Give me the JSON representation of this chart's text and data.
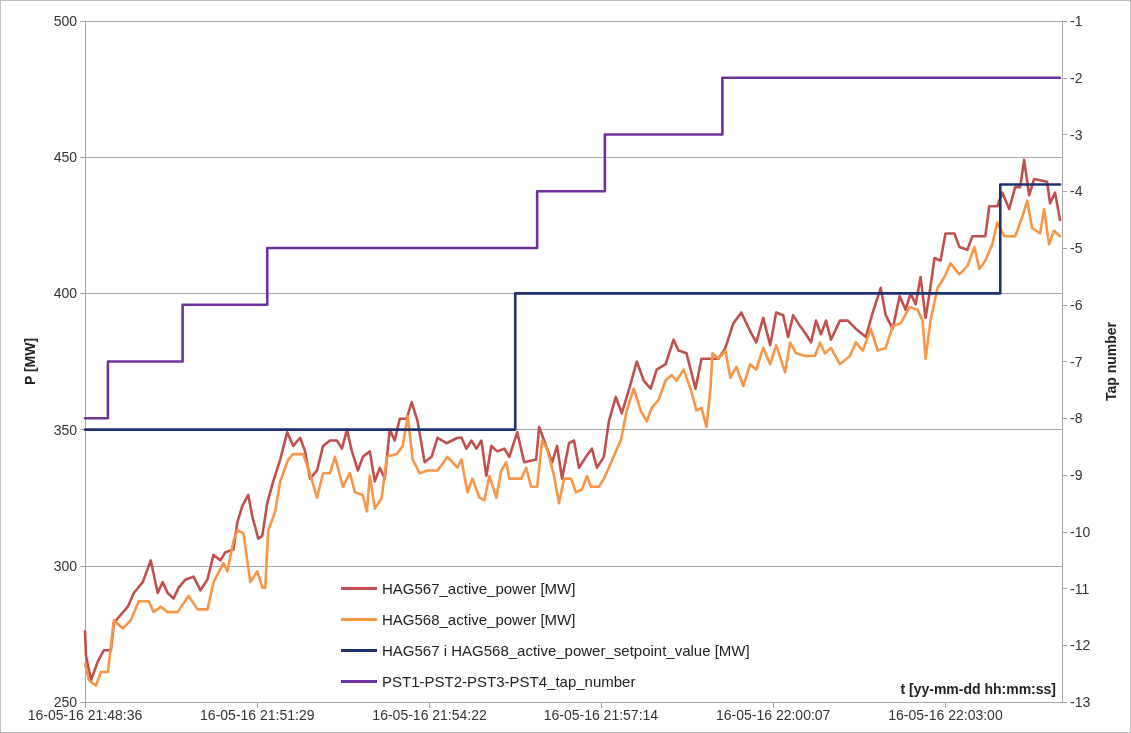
{
  "chart_data": {
    "type": "line",
    "xlabel": "t [yy-mm-dd hh:mm:ss]",
    "ylabel": "P [MW]",
    "y2label": "Tap number",
    "xlim": [
      "--05-16T21:48:36",
      "--05-16T22:04:57"
    ],
    "xticks": [
      {
        "value": "--05-16T21:48:36",
        "label": "16-05-16 21:48:36"
      },
      {
        "value": "--05-16T21:51:29",
        "label": "16-05-16 21:51:29"
      },
      {
        "value": "--05-16T21:54:22",
        "label": "16-05-16 21:54:22"
      },
      {
        "value": "--05-16T21:57:14",
        "label": "16-05-16 21:57:14"
      },
      {
        "value": "--05-16T22:00:07",
        "label": "16-05-16 22:00:07"
      },
      {
        "value": "--05-16T22:03:00",
        "label": "16-05-16 22:03:00"
      }
    ],
    "ylim": [
      250,
      500
    ],
    "yticks": [
      250,
      300,
      350,
      400,
      450,
      500
    ],
    "y2lim": [
      -13,
      -1
    ],
    "y2ticks": [
      -13,
      -12,
      -11,
      -10,
      -9,
      -8,
      -7,
      -6,
      -5,
      -4,
      -3,
      -2,
      -1
    ],
    "grid": "y",
    "legend": "bottom",
    "marker": "none",
    "series": [
      {
        "name": "HAG567_active_power [MW]",
        "color": "#c0504d",
        "x": [
          "--05-16T21:48:36",
          "--05-16T21:48:37",
          "--05-16T21:48:42",
          "--05-16T21:48:49",
          "--05-16T21:48:55",
          "--05-16T21:49:02",
          "--05-16T21:49:05",
          "--05-16T21:49:19",
          "--05-16T21:49:25",
          "--05-16T21:49:34",
          "--05-16T21:49:42",
          "--05-16T21:49:49",
          "--05-16T21:49:54",
          "--05-16T21:49:59",
          "--05-16T21:50:05",
          "--05-16T21:50:10",
          "--05-16T21:50:17",
          "--05-16T21:50:25",
          "--05-16T21:50:32",
          "--05-16T21:50:39",
          "--05-16T21:50:45",
          "--05-16T21:50:52",
          "--05-16T21:50:57",
          "--05-16T21:51:05",
          "--05-16T21:51:09",
          "--05-16T21:51:14",
          "--05-16T21:51:20",
          "--05-16T21:51:24",
          "--05-16T21:51:30",
          "--05-16T21:51:34",
          "--05-16T21:51:39",
          "--05-16T21:51:45",
          "--05-16T21:51:52",
          "--05-16T21:51:59",
          "--05-16T21:52:05",
          "--05-16T21:52:12",
          "--05-16T21:52:17",
          "--05-16T21:52:22",
          "--05-16T21:52:29",
          "--05-16T21:52:35",
          "--05-16T21:52:42",
          "--05-16T21:52:49",
          "--05-16T21:52:54",
          "--05-16T21:52:59",
          "--05-16T21:53:04",
          "--05-16T21:53:10",
          "--05-16T21:53:15",
          "--05-16T21:53:22",
          "--05-16T21:53:27",
          "--05-16T21:53:32",
          "--05-16T21:53:37",
          "--05-16T21:53:42",
          "--05-16T21:53:47",
          "--05-16T21:53:52",
          "--05-16T21:53:59",
          "--05-16T21:54:04",
          "--05-16T21:54:10",
          "--05-16T21:54:17",
          "--05-16T21:54:24",
          "--05-16T21:54:30",
          "--05-16T21:54:39",
          "--05-16T21:54:50",
          "--05-16T21:54:54",
          "--05-16T21:54:59",
          "--05-16T21:55:04",
          "--05-16T21:55:09",
          "--05-16T21:55:14",
          "--05-16T21:55:19",
          "--05-16T21:55:24",
          "--05-16T21:55:30",
          "--05-16T21:55:37",
          "--05-16T21:55:42",
          "--05-16T21:55:50",
          "--05-16T21:55:57",
          "--05-16T21:56:09",
          "--05-16T21:56:12",
          "--05-16T21:56:19",
          "--05-16T21:56:25",
          "--05-16T21:56:30",
          "--05-16T21:56:35",
          "--05-16T21:56:42",
          "--05-16T21:56:47",
          "--05-16T21:56:52",
          "--05-16T21:56:59",
          "--05-16T21:57:05",
          "--05-16T21:57:10",
          "--05-16T21:57:17",
          "--05-16T21:57:22",
          "--05-16T21:57:29",
          "--05-16T21:57:35",
          "--05-16T21:57:44",
          "--05-16T21:57:50",
          "--05-16T21:57:57",
          "--05-16T21:58:04",
          "--05-16T21:58:10",
          "--05-16T21:58:19",
          "--05-16T21:58:27",
          "--05-16T21:58:32",
          "--05-16T21:58:40",
          "--05-16T21:58:49",
          "--05-16T21:58:55",
          "--05-16T21:59:02",
          "--05-16T21:59:12",
          "--05-16T21:59:19",
          "--05-16T21:59:27",
          "--05-16T21:59:35",
          "--05-16T21:59:44",
          "--05-16T21:59:50",
          "--05-16T21:59:57",
          "--05-16T22:00:04",
          "--05-16T22:00:10",
          "--05-16T22:00:17",
          "--05-16T22:00:22",
          "--05-16T22:00:27",
          "--05-16T22:00:34",
          "--05-16T22:00:40",
          "--05-16T22:00:45",
          "--05-16T22:00:50",
          "--05-16T22:00:55",
          "--05-16T22:01:00",
          "--05-16T22:01:05",
          "--05-16T22:01:14",
          "--05-16T22:01:22",
          "--05-16T22:01:30",
          "--05-16T22:01:40",
          "--05-16T22:01:47",
          "--05-16T22:01:55",
          "--05-16T22:02:00",
          "--05-16T22:02:07",
          "--05-16T22:02:14",
          "--05-16T22:02:20",
          "--05-16T22:02:25",
          "--05-16T22:02:30",
          "--05-16T22:02:35",
          "--05-16T22:02:40",
          "--05-16T22:02:44",
          "--05-16T22:02:49",
          "--05-16T22:02:55",
          "--05-16T22:03:00",
          "--05-16T22:03:09",
          "--05-16T22:03:14",
          "--05-16T22:03:22",
          "--05-16T22:03:27",
          "--05-16T22:03:40",
          "--05-16T22:03:44",
          "--05-16T22:03:52",
          "--05-16T22:03:57",
          "--05-16T22:04:04",
          "--05-16T22:04:10",
          "--05-16T22:04:15",
          "--05-16T22:04:19",
          "--05-16T22:04:24",
          "--05-16T22:04:29",
          "--05-16T22:04:42",
          "--05-16T22:04:45",
          "--05-16T22:04:50",
          "--05-16T22:04:55"
        ],
        "values": [
          276,
          267,
          258,
          265,
          269,
          269,
          279,
          285,
          290,
          294,
          302,
          290,
          294,
          290,
          288,
          292,
          295,
          296,
          291,
          295,
          304,
          302,
          305,
          306,
          316,
          322,
          326,
          318,
          310,
          311,
          323,
          331,
          339,
          349,
          344,
          347,
          342,
          332,
          335,
          344,
          346,
          346,
          343,
          350,
          342,
          335,
          340,
          342,
          331,
          336,
          332,
          350,
          346,
          354,
          354,
          360,
          353,
          338,
          340,
          347,
          345,
          347,
          347,
          343,
          346,
          343,
          346,
          333,
          344,
          342,
          343,
          340,
          349,
          338,
          339,
          351,
          344,
          338,
          344,
          332,
          345,
          346,
          336,
          340,
          343,
          336,
          340,
          353,
          362,
          356,
          367,
          375,
          368,
          365,
          372,
          374,
          383,
          379,
          378,
          365,
          376,
          376,
          376,
          380,
          389,
          393,
          386,
          382,
          391,
          381,
          393,
          392,
          384,
          392,
          388,
          385,
          382,
          390,
          385,
          390,
          383,
          390,
          390,
          387,
          384,
          393,
          402,
          392,
          387,
          399,
          394,
          400,
          396,
          406,
          391,
          400,
          413,
          412,
          422,
          422,
          417,
          416,
          421,
          421,
          432,
          432,
          437,
          431,
          439,
          439,
          449,
          436,
          442,
          441,
          433,
          437,
          427
        ]
      },
      {
        "name": "HAG568_active_power [MW]",
        "color": "#f79646",
        "x": [
          "--05-16T21:48:36",
          "--05-16T21:48:40",
          "--05-16T21:48:47",
          "--05-16T21:48:52",
          "--05-16T21:48:59",
          "--05-16T21:49:05",
          "--05-16T21:49:14",
          "--05-16T21:49:22",
          "--05-16T21:49:30",
          "--05-16T21:49:40",
          "--05-16T21:49:45",
          "--05-16T21:49:52",
          "--05-16T21:49:59",
          "--05-16T21:50:09",
          "--05-16T21:50:20",
          "--05-16T21:50:29",
          "--05-16T21:50:39",
          "--05-16T21:50:45",
          "--05-16T21:50:55",
          "--05-16T21:50:59",
          "--05-16T21:51:05",
          "--05-16T21:51:09",
          "--05-16T21:51:15",
          "--05-16T21:51:22",
          "--05-16T21:51:29",
          "--05-16T21:51:34",
          "--05-16T21:51:37",
          "--05-16T21:51:40",
          "--05-16T21:51:47",
          "--05-16T21:51:52",
          "--05-16T21:52:00",
          "--05-16T21:52:05",
          "--05-16T21:52:15",
          "--05-16T21:52:20",
          "--05-16T21:52:29",
          "--05-16T21:52:35",
          "--05-16T21:52:42",
          "--05-16T21:52:47",
          "--05-16T21:52:55",
          "--05-16T21:53:02",
          "--05-16T21:53:07",
          "--05-16T21:53:15",
          "--05-16T21:53:19",
          "--05-16T21:53:22",
          "--05-16T21:53:27",
          "--05-16T21:53:34",
          "--05-16T21:53:39",
          "--05-16T21:53:49",
          "--05-16T21:53:55",
          "--05-16T21:54:00",
          "--05-16T21:54:05",
          "--05-16T21:54:12",
          "--05-16T21:54:20",
          "--05-16T21:54:30",
          "--05-16T21:54:40",
          "--05-16T21:54:50",
          "--05-16T21:54:54",
          "--05-16T21:55:00",
          "--05-16T21:55:05",
          "--05-16T21:55:12",
          "--05-16T21:55:17",
          "--05-16T21:55:22",
          "--05-16T21:55:29",
          "--05-16T21:55:34",
          "--05-16T21:55:39",
          "--05-16T21:55:42",
          "--05-16T21:55:54",
          "--05-16T21:55:59",
          "--05-16T21:56:04",
          "--05-16T21:56:10",
          "--05-16T21:56:15",
          "--05-16T21:56:20",
          "--05-16T21:56:27",
          "--05-16T21:56:32",
          "--05-16T21:56:37",
          "--05-16T21:56:44",
          "--05-16T21:56:49",
          "--05-16T21:56:55",
          "--05-16T21:57:00",
          "--05-16T21:57:04",
          "--05-16T21:57:12",
          "--05-16T21:57:17",
          "--05-16T21:57:22",
          "--05-16T21:57:29",
          "--05-16T21:57:34",
          "--05-16T21:57:40",
          "--05-16T21:57:47",
          "--05-16T21:57:54",
          "--05-16T21:58:00",
          "--05-16T21:58:05",
          "--05-16T21:58:12",
          "--05-16T21:58:19",
          "--05-16T21:58:25",
          "--05-16T21:58:30",
          "--05-16T21:58:37",
          "--05-16T21:58:44",
          "--05-16T21:58:50",
          "--05-16T21:58:55",
          "--05-16T21:59:00",
          "--05-16T21:59:04",
          "--05-16T21:59:06",
          "--05-16T21:59:12",
          "--05-16T21:59:19",
          "--05-16T21:59:24",
          "--05-16T21:59:30",
          "--05-16T21:59:37",
          "--05-16T21:59:44",
          "--05-16T21:59:50",
          "--05-16T21:59:57",
          "--05-16T22:00:04",
          "--05-16T22:00:10",
          "--05-16T22:00:19",
          "--05-16T22:00:24",
          "--05-16T22:00:30",
          "--05-16T22:00:39",
          "--05-16T22:00:49",
          "--05-16T22:00:54",
          "--05-16T22:00:59",
          "--05-16T22:01:05",
          "--05-16T22:01:14",
          "--05-16T22:01:24",
          "--05-16T22:01:30",
          "--05-16T22:01:37",
          "--05-16T22:01:45",
          "--05-16T22:01:52",
          "--05-16T22:02:00",
          "--05-16T22:02:07",
          "--05-16T22:02:15",
          "--05-16T22:02:24",
          "--05-16T22:02:32",
          "--05-16T22:02:37",
          "--05-16T22:02:40",
          "--05-16T22:02:45",
          "--05-16T22:02:52",
          "--05-16T22:02:59",
          "--05-16T22:03:05",
          "--05-16T22:03:14",
          "--05-16T22:03:22",
          "--05-16T22:03:29",
          "--05-16T22:03:34",
          "--05-16T22:03:40",
          "--05-16T22:03:47",
          "--05-16T22:03:52",
          "--05-16T22:03:59",
          "--05-16T22:04:10",
          "--05-16T22:04:17",
          "--05-16T22:04:22",
          "--05-16T22:04:27",
          "--05-16T22:04:35",
          "--05-16T22:04:39",
          "--05-16T22:04:44",
          "--05-16T22:04:49",
          "--05-16T22:04:55"
        ],
        "values": [
          264,
          258,
          256,
          261,
          261,
          280,
          277,
          280,
          287,
          287,
          283,
          285,
          283,
          283,
          289,
          284,
          284,
          294,
          301,
          298,
          309,
          313,
          312,
          294,
          298,
          292,
          292,
          313,
          320,
          331,
          339,
          341,
          341,
          336,
          325,
          334,
          334,
          340,
          329,
          334,
          327,
          326,
          320,
          333,
          321,
          325,
          340,
          341,
          344,
          355,
          339,
          334,
          335,
          335,
          340,
          336,
          339,
          327,
          332,
          325,
          324,
          333,
          325,
          335,
          338,
          332,
          332,
          336,
          329,
          329,
          346,
          343,
          333,
          323,
          332,
          332,
          327,
          328,
          333,
          329,
          329,
          332,
          336,
          342,
          346,
          357,
          365,
          357,
          353,
          358,
          361,
          368,
          370,
          368,
          372,
          365,
          357,
          358,
          351,
          365,
          378,
          376,
          379,
          369,
          373,
          366,
          374,
          372,
          380,
          374,
          381,
          371,
          382,
          378,
          377,
          377,
          382,
          378,
          380,
          374,
          377,
          382,
          379,
          387,
          379,
          380,
          388,
          389,
          395,
          394,
          390,
          376,
          390,
          402,
          406,
          411,
          407,
          410,
          417,
          409,
          412,
          418,
          426,
          421,
          421,
          428,
          434,
          424,
          422,
          431,
          418,
          423,
          421
        ]
      },
      {
        "name": "HAG567 i HAG568_active_power_setpoint_value [MW]",
        "color": "#1f3070",
        "type": "step",
        "x": [
          "--05-16T21:48:36",
          "--05-16T21:55:48",
          "--05-16T22:03:55",
          "--05-16T22:04:55"
        ],
        "values": [
          350,
          400,
          440,
          440
        ]
      },
      {
        "name": "PST1-PST2-PST3-PST4_tap_number",
        "color": "#7030a0",
        "type": "step",
        "axis": "y2",
        "x": [
          "--05-16T21:48:36",
          "--05-16T21:48:59",
          "--05-16T21:50:14",
          "--05-16T21:51:39",
          "--05-16T21:56:10",
          "--05-16T21:57:18",
          "--05-16T21:59:16",
          "--05-16T22:04:55"
        ],
        "values": [
          -8,
          -7,
          -6,
          -5,
          -4,
          -3,
          -2,
          -2
        ]
      }
    ]
  }
}
